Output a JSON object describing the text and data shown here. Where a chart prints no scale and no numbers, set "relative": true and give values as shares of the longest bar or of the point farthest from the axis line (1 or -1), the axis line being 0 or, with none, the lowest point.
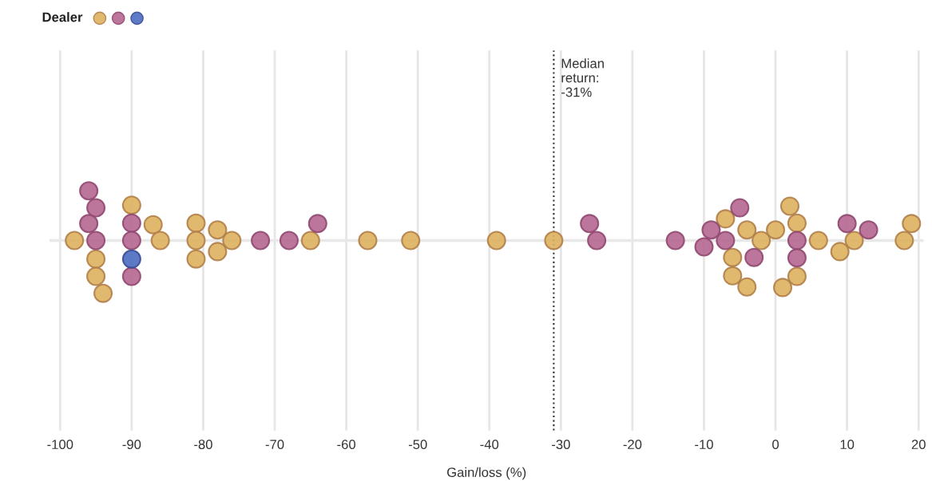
{
  "chart_data": {
    "type": "scatter",
    "relative": true,
    "legend_title": "Dealer",
    "xlabel": "Gain/loss (%)",
    "grid": "x",
    "marker": "circle",
    "xlim": [
      -101.5,
      20.7
    ],
    "xticks": [
      -100,
      -90,
      -80,
      -70,
      -60,
      -50,
      -40,
      -30,
      -20,
      -10,
      0,
      10,
      20
    ],
    "ref_lines": [
      {
        "axis": "x",
        "value": -31,
        "label": "Median\nreturn:\n-31%",
        "line_style": "dotted",
        "color": "#333333"
      }
    ],
    "series": [
      {
        "color": "#ddb15f",
        "x": [
          -98,
          -95,
          -95,
          -94,
          -90,
          -87,
          -86,
          -81,
          -81,
          -81,
          -78,
          -78,
          -76,
          -65,
          -57,
          -51,
          -39,
          -31,
          -7,
          -6,
          -6,
          -4,
          -4,
          -2,
          0,
          2,
          3,
          3,
          1,
          6,
          9,
          11,
          18,
          19
        ],
        "values": [
          0,
          -0.35,
          -0.68,
          -1,
          0.67,
          0.3,
          0,
          0.33,
          0,
          -0.35,
          0.2,
          -0.21,
          0,
          0,
          0,
          0,
          0,
          0,
          0.41,
          -0.32,
          -0.67,
          0.2,
          -0.88,
          0,
          0.2,
          0.65,
          0.33,
          -0.68,
          -0.89,
          0,
          -0.21,
          0,
          0,
          0.32
        ]
      },
      {
        "color": "#b56690",
        "x": [
          -96,
          -95,
          -96,
          -95,
          -90,
          -90,
          -90,
          -72,
          -68,
          -64,
          -26,
          -25,
          -14,
          -9,
          -10,
          -7,
          -5,
          -3,
          3,
          3,
          10,
          13
        ],
        "values": [
          0.94,
          0.62,
          0.32,
          0,
          0.33,
          0,
          -0.68,
          0,
          0,
          0.32,
          0.32,
          0,
          0,
          0.2,
          -0.12,
          0,
          0.62,
          -0.32,
          0,
          -0.33,
          0.32,
          0.2
        ]
      },
      {
        "color": "#4a6bbf",
        "x": [
          -90
        ],
        "values": [
          -0.35
        ]
      }
    ]
  }
}
